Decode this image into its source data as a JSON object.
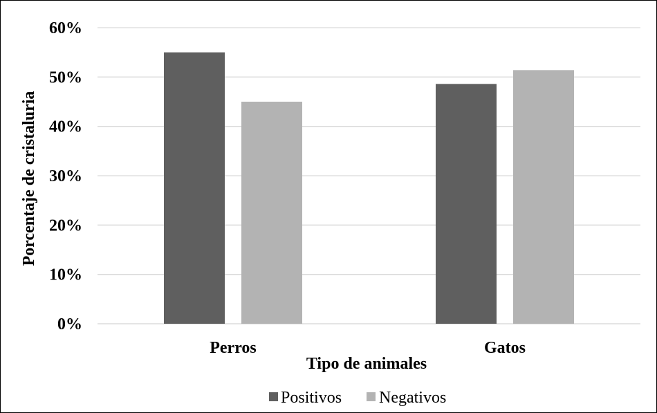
{
  "chart_data": {
    "type": "bar",
    "categories": [
      "Perros",
      "Gatos"
    ],
    "series": [
      {
        "name": "Positivos",
        "values": [
          0.55,
          0.486
        ],
        "color": "#5f5f5f"
      },
      {
        "name": "Negativos",
        "values": [
          0.45,
          0.514
        ],
        "color": "#b3b3b3"
      }
    ],
    "xlabel": "Tipo de animales",
    "ylabel": "Porcentaje de  cristaluria",
    "ylim": [
      0,
      0.6
    ],
    "yticks": [
      {
        "value": 0,
        "label": "0%"
      },
      {
        "value": 0.1,
        "label": "10%"
      },
      {
        "value": 0.2,
        "label": "20%"
      },
      {
        "value": 0.3,
        "label": "30%"
      },
      {
        "value": 0.4,
        "label": "40%"
      },
      {
        "value": 0.5,
        "label": "50%"
      },
      {
        "value": 0.6,
        "label": "60%"
      }
    ],
    "grid": true,
    "legend_position": "bottom",
    "gridline_color": "#d9d9d9"
  }
}
